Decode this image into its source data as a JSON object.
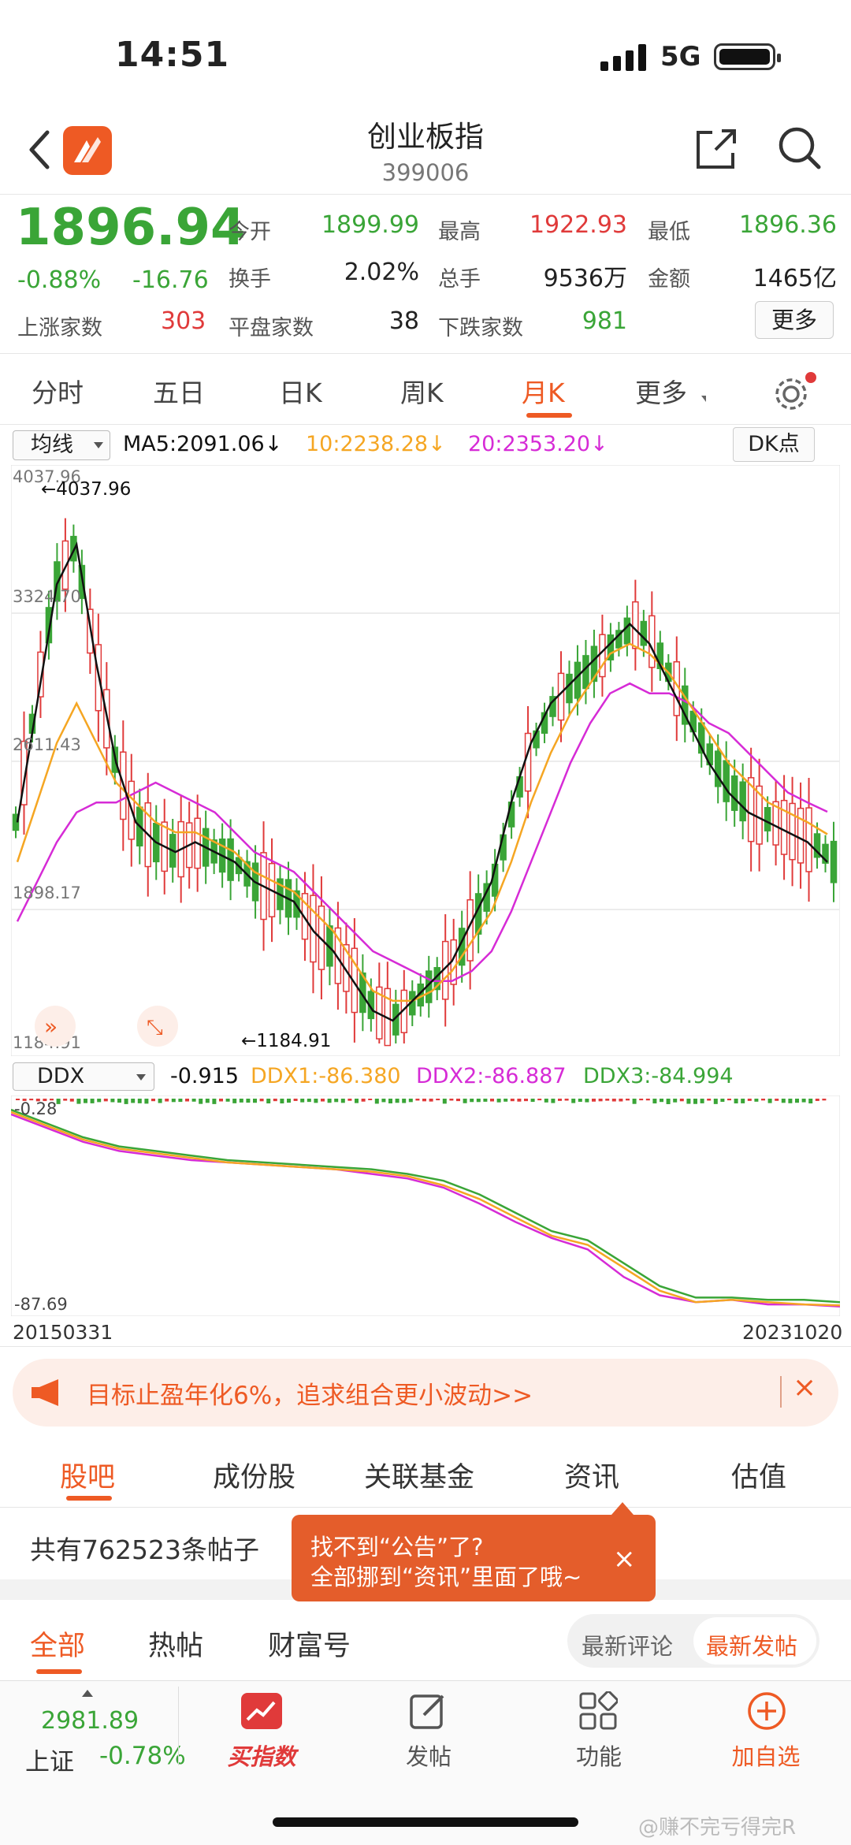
{
  "status": {
    "time": "14:51",
    "network": "5G"
  },
  "nav": {
    "title": "创业板指",
    "code": "399006"
  },
  "quote": {
    "price": "1896.94",
    "change_pct": "-0.88%",
    "change_amt": "-16.76",
    "up_count_label": "上涨家数",
    "up_count": "303",
    "rows": [
      [
        {
          "l": "今开",
          "v": "1899.99",
          "c": "green"
        },
        {
          "l": "最高",
          "v": "1922.93",
          "c": "red"
        },
        {
          "l": "最低",
          "v": "1896.36",
          "c": "green"
        }
      ],
      [
        {
          "l": "换手",
          "v": "2.02%",
          "c": "dark"
        },
        {
          "l": "总手",
          "v": "9536万",
          "c": "dark"
        },
        {
          "l": "金额",
          "v": "1465亿",
          "c": "dark"
        }
      ],
      [
        {
          "l": "平盘家数",
          "v": "38",
          "c": "dark"
        },
        {
          "l": "下跌家数",
          "v": "981",
          "c": "green"
        }
      ]
    ],
    "more": "更多"
  },
  "period_tabs": [
    "分时",
    "五日",
    "日K",
    "周K",
    "月K",
    "更多"
  ],
  "active_period": "月K",
  "indicator": {
    "select": "均线",
    "ma5": "MA5:2091.06↓",
    "ma10": "10:2238.28↓",
    "ma20": "20:2353.20↓",
    "dk": "DK点"
  },
  "colors": {
    "up": "#e03a3a",
    "down": "#3aa537",
    "ma5": "#111111",
    "ma10": "#f5a623",
    "ma20": "#d62bd6",
    "accent": "#ee5a24"
  },
  "kchart": {
    "y_labels": [
      "4037.96",
      "3324.70",
      "2611.43",
      "1898.17",
      "1184.91"
    ],
    "high_mark": "4037.96",
    "low_mark": "1184.91"
  },
  "ddx": {
    "select": "DDX",
    "value": "-0.915",
    "ddx1": "DDX1:-86.380",
    "ddx2": "DDX2:-86.887",
    "ddx3": "DDX3:-84.994",
    "y_top": "-0.28",
    "y_bottom": "-87.69"
  },
  "dates": {
    "start": "20150331",
    "end": "20231020"
  },
  "chart_data": {
    "type": "line",
    "title": "创业板指 月K",
    "x_range": [
      "20150331",
      "20231020"
    ],
    "ylim": [
      1184.91,
      4037.96
    ],
    "y_ticks": [
      4037.96,
      3324.7,
      2611.43,
      1898.17,
      1184.91
    ],
    "series": [
      {
        "name": "MA5",
        "last": 2091.06,
        "values": [
          2300,
          2900,
          3500,
          3700,
          3100,
          2600,
          2300,
          2200,
          2150,
          2200,
          2150,
          2100,
          2000,
          1950,
          1900,
          1750,
          1650,
          1500,
          1350,
          1300,
          1400,
          1500,
          1600,
          1800,
          2000,
          2400,
          2700,
          2900,
          3000,
          3100,
          3200,
          3300,
          3200,
          3000,
          2800,
          2600,
          2450,
          2350,
          2300,
          2250,
          2200,
          2100
        ]
      },
      {
        "name": "MA10",
        "last": 2238.28,
        "values": [
          2100,
          2400,
          2700,
          2900,
          2700,
          2500,
          2400,
          2300,
          2250,
          2250,
          2200,
          2150,
          2050,
          2000,
          1950,
          1850,
          1750,
          1600,
          1450,
          1400,
          1400,
          1450,
          1550,
          1700,
          1850,
          2100,
          2400,
          2650,
          2850,
          3000,
          3150,
          3200,
          3150,
          3050,
          2900,
          2750,
          2600,
          2500,
          2400,
          2350,
          2300,
          2240
        ]
      },
      {
        "name": "MA20",
        "last": 2353.2,
        "values": [
          1800,
          2000,
          2200,
          2350,
          2400,
          2400,
          2450,
          2500,
          2450,
          2400,
          2350,
          2250,
          2150,
          2100,
          2050,
          1950,
          1850,
          1750,
          1650,
          1600,
          1550,
          1500,
          1500,
          1550,
          1650,
          1850,
          2100,
          2350,
          2600,
          2800,
          2950,
          3000,
          2950,
          2950,
          2900,
          2800,
          2750,
          2650,
          2550,
          2450,
          2400,
          2353
        ]
      }
    ],
    "ddx_series": [
      {
        "name": "DDX1",
        "last": -86.38,
        "values": [
          -2,
          -8,
          -14,
          -18,
          -20,
          -22,
          -24,
          -25,
          -26,
          -27,
          -28,
          -30,
          -34,
          -40,
          -48,
          -56,
          -60,
          -70,
          -80,
          -85,
          -84,
          -85,
          -86,
          -86.38
        ]
      },
      {
        "name": "DDX2",
        "last": -86.887,
        "values": [
          -3,
          -9,
          -15,
          -19,
          -21,
          -23,
          -24,
          -25,
          -26,
          -27,
          -29,
          -31,
          -35,
          -42,
          -50,
          -57,
          -62,
          -74,
          -82,
          -85,
          -84,
          -86,
          -86,
          -86.887
        ]
      },
      {
        "name": "DDX3",
        "last": -84.994,
        "values": [
          -1,
          -7,
          -13,
          -17,
          -19,
          -21,
          -23,
          -24,
          -25,
          -26,
          -27,
          -29,
          -32,
          -38,
          -46,
          -54,
          -58,
          -68,
          -78,
          -83,
          -83,
          -84,
          -84,
          -84.994
        ]
      }
    ]
  },
  "banner": {
    "text": "目标止盈年化6%，追求组合更小波动>>",
    "close": "×"
  },
  "content_tabs": [
    "股吧",
    "成份股",
    "关联基金",
    "资讯",
    "估值"
  ],
  "posts": {
    "count_text": "共有762523条帖子"
  },
  "tooltip": {
    "line1": "找不到“公告”了?",
    "line2": "全部挪到“资讯”里面了哦~",
    "close": "×"
  },
  "feed_tabs": [
    "全部",
    "热帖",
    "财富号"
  ],
  "sort": {
    "a": "最新评论",
    "b": "最新发帖"
  },
  "bottom": {
    "index_value": "2981.89",
    "index_label": "上证",
    "index_pct": "-0.78%",
    "items": [
      "买指数",
      "发帖",
      "功能",
      "加自选"
    ]
  },
  "watermark": "@赚不完亏得完R"
}
